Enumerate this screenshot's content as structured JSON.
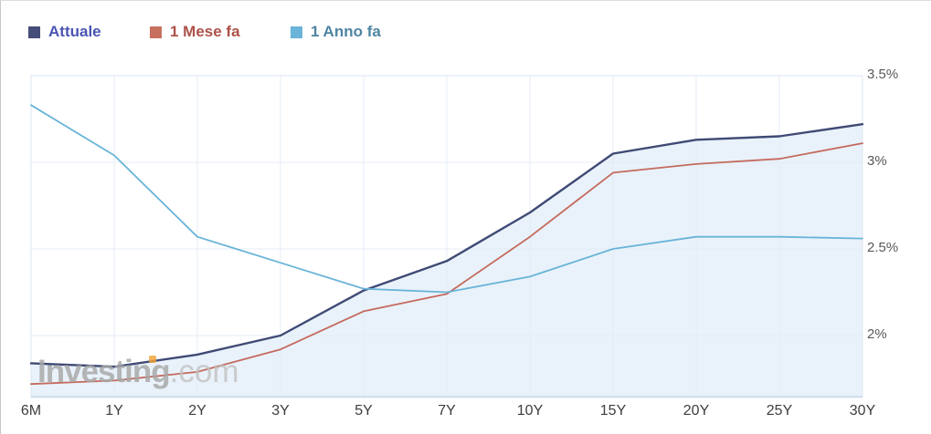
{
  "legend": {
    "items": [
      {
        "label": "Attuale",
        "swatch_color": "#454e78",
        "label_color": "#4a55b2"
      },
      {
        "label": "1 Mese fa",
        "swatch_color": "#c8705f",
        "label_color": "#ad5148"
      },
      {
        "label": "1 Anno fa",
        "swatch_color": "#69b4d8",
        "label_color": "#4f85a3"
      }
    ]
  },
  "watermark": {
    "brand": "Investing",
    "suffix": ".com"
  },
  "axes": {
    "y_ticks": [
      {
        "value": 3.5,
        "label": "3.5%"
      },
      {
        "value": 3.0,
        "label": "3%"
      },
      {
        "value": 2.5,
        "label": "2.5%"
      },
      {
        "value": 2.0,
        "label": "2%"
      }
    ]
  },
  "colors": {
    "area_fill": "#e9f2fa",
    "gridline": "#e4ecf7",
    "plot_border": "#dde7f2",
    "plot_bottom_border": "#cfe0ef"
  },
  "chart_data": {
    "type": "line",
    "title": "",
    "xlabel": "",
    "ylabel": "",
    "unit": "%",
    "grid": true,
    "legend_position": "top-left",
    "ylim": [
      1.64,
      3.5
    ],
    "y_tick_values": [
      3.5,
      3.0,
      2.5,
      2.0
    ],
    "categories": [
      "6M",
      "1Y",
      "2Y",
      "3Y",
      "5Y",
      "7Y",
      "10Y",
      "15Y",
      "20Y",
      "25Y",
      "30Y"
    ],
    "series": [
      {
        "name": "Attuale",
        "color": "#3f4a75",
        "area": true,
        "values": [
          1.84,
          1.82,
          1.89,
          2.0,
          2.26,
          2.43,
          2.71,
          3.05,
          3.13,
          3.15,
          3.22
        ]
      },
      {
        "name": "1 Mese fa",
        "color": "#c56a5e",
        "area": false,
        "values": [
          1.72,
          1.74,
          1.79,
          1.92,
          2.14,
          2.24,
          2.57,
          2.94,
          2.99,
          3.02,
          3.11
        ]
      },
      {
        "name": "1 Anno fa",
        "color": "#68b4d8",
        "area": false,
        "values": [
          3.33,
          3.04,
          2.57,
          2.42,
          2.27,
          2.25,
          2.34,
          2.5,
          2.57,
          2.57,
          2.56
        ]
      }
    ]
  }
}
